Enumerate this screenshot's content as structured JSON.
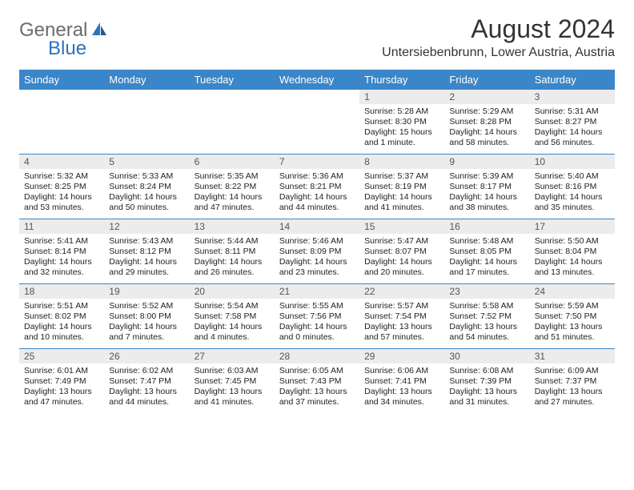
{
  "brand": {
    "general": "General",
    "blue": "Blue"
  },
  "title": "August 2024",
  "location": "Untersiebenbrunn, Lower Austria, Austria",
  "header_bg": "#3a86c8",
  "days": [
    "Sunday",
    "Monday",
    "Tuesday",
    "Wednesday",
    "Thursday",
    "Friday",
    "Saturday"
  ],
  "weeks": [
    [
      null,
      null,
      null,
      null,
      {
        "n": "1",
        "sr": "Sunrise: 5:28 AM",
        "ss": "Sunset: 8:30 PM",
        "dl": "Daylight: 15 hours and 1 minute."
      },
      {
        "n": "2",
        "sr": "Sunrise: 5:29 AM",
        "ss": "Sunset: 8:28 PM",
        "dl": "Daylight: 14 hours and 58 minutes."
      },
      {
        "n": "3",
        "sr": "Sunrise: 5:31 AM",
        "ss": "Sunset: 8:27 PM",
        "dl": "Daylight: 14 hours and 56 minutes."
      }
    ],
    [
      {
        "n": "4",
        "sr": "Sunrise: 5:32 AM",
        "ss": "Sunset: 8:25 PM",
        "dl": "Daylight: 14 hours and 53 minutes."
      },
      {
        "n": "5",
        "sr": "Sunrise: 5:33 AM",
        "ss": "Sunset: 8:24 PM",
        "dl": "Daylight: 14 hours and 50 minutes."
      },
      {
        "n": "6",
        "sr": "Sunrise: 5:35 AM",
        "ss": "Sunset: 8:22 PM",
        "dl": "Daylight: 14 hours and 47 minutes."
      },
      {
        "n": "7",
        "sr": "Sunrise: 5:36 AM",
        "ss": "Sunset: 8:21 PM",
        "dl": "Daylight: 14 hours and 44 minutes."
      },
      {
        "n": "8",
        "sr": "Sunrise: 5:37 AM",
        "ss": "Sunset: 8:19 PM",
        "dl": "Daylight: 14 hours and 41 minutes."
      },
      {
        "n": "9",
        "sr": "Sunrise: 5:39 AM",
        "ss": "Sunset: 8:17 PM",
        "dl": "Daylight: 14 hours and 38 minutes."
      },
      {
        "n": "10",
        "sr": "Sunrise: 5:40 AM",
        "ss": "Sunset: 8:16 PM",
        "dl": "Daylight: 14 hours and 35 minutes."
      }
    ],
    [
      {
        "n": "11",
        "sr": "Sunrise: 5:41 AM",
        "ss": "Sunset: 8:14 PM",
        "dl": "Daylight: 14 hours and 32 minutes."
      },
      {
        "n": "12",
        "sr": "Sunrise: 5:43 AM",
        "ss": "Sunset: 8:12 PM",
        "dl": "Daylight: 14 hours and 29 minutes."
      },
      {
        "n": "13",
        "sr": "Sunrise: 5:44 AM",
        "ss": "Sunset: 8:11 PM",
        "dl": "Daylight: 14 hours and 26 minutes."
      },
      {
        "n": "14",
        "sr": "Sunrise: 5:46 AM",
        "ss": "Sunset: 8:09 PM",
        "dl": "Daylight: 14 hours and 23 minutes."
      },
      {
        "n": "15",
        "sr": "Sunrise: 5:47 AM",
        "ss": "Sunset: 8:07 PM",
        "dl": "Daylight: 14 hours and 20 minutes."
      },
      {
        "n": "16",
        "sr": "Sunrise: 5:48 AM",
        "ss": "Sunset: 8:05 PM",
        "dl": "Daylight: 14 hours and 17 minutes."
      },
      {
        "n": "17",
        "sr": "Sunrise: 5:50 AM",
        "ss": "Sunset: 8:04 PM",
        "dl": "Daylight: 14 hours and 13 minutes."
      }
    ],
    [
      {
        "n": "18",
        "sr": "Sunrise: 5:51 AM",
        "ss": "Sunset: 8:02 PM",
        "dl": "Daylight: 14 hours and 10 minutes."
      },
      {
        "n": "19",
        "sr": "Sunrise: 5:52 AM",
        "ss": "Sunset: 8:00 PM",
        "dl": "Daylight: 14 hours and 7 minutes."
      },
      {
        "n": "20",
        "sr": "Sunrise: 5:54 AM",
        "ss": "Sunset: 7:58 PM",
        "dl": "Daylight: 14 hours and 4 minutes."
      },
      {
        "n": "21",
        "sr": "Sunrise: 5:55 AM",
        "ss": "Sunset: 7:56 PM",
        "dl": "Daylight: 14 hours and 0 minutes."
      },
      {
        "n": "22",
        "sr": "Sunrise: 5:57 AM",
        "ss": "Sunset: 7:54 PM",
        "dl": "Daylight: 13 hours and 57 minutes."
      },
      {
        "n": "23",
        "sr": "Sunrise: 5:58 AM",
        "ss": "Sunset: 7:52 PM",
        "dl": "Daylight: 13 hours and 54 minutes."
      },
      {
        "n": "24",
        "sr": "Sunrise: 5:59 AM",
        "ss": "Sunset: 7:50 PM",
        "dl": "Daylight: 13 hours and 51 minutes."
      }
    ],
    [
      {
        "n": "25",
        "sr": "Sunrise: 6:01 AM",
        "ss": "Sunset: 7:49 PM",
        "dl": "Daylight: 13 hours and 47 minutes."
      },
      {
        "n": "26",
        "sr": "Sunrise: 6:02 AM",
        "ss": "Sunset: 7:47 PM",
        "dl": "Daylight: 13 hours and 44 minutes."
      },
      {
        "n": "27",
        "sr": "Sunrise: 6:03 AM",
        "ss": "Sunset: 7:45 PM",
        "dl": "Daylight: 13 hours and 41 minutes."
      },
      {
        "n": "28",
        "sr": "Sunrise: 6:05 AM",
        "ss": "Sunset: 7:43 PM",
        "dl": "Daylight: 13 hours and 37 minutes."
      },
      {
        "n": "29",
        "sr": "Sunrise: 6:06 AM",
        "ss": "Sunset: 7:41 PM",
        "dl": "Daylight: 13 hours and 34 minutes."
      },
      {
        "n": "30",
        "sr": "Sunrise: 6:08 AM",
        "ss": "Sunset: 7:39 PM",
        "dl": "Daylight: 13 hours and 31 minutes."
      },
      {
        "n": "31",
        "sr": "Sunrise: 6:09 AM",
        "ss": "Sunset: 7:37 PM",
        "dl": "Daylight: 13 hours and 27 minutes."
      }
    ]
  ]
}
